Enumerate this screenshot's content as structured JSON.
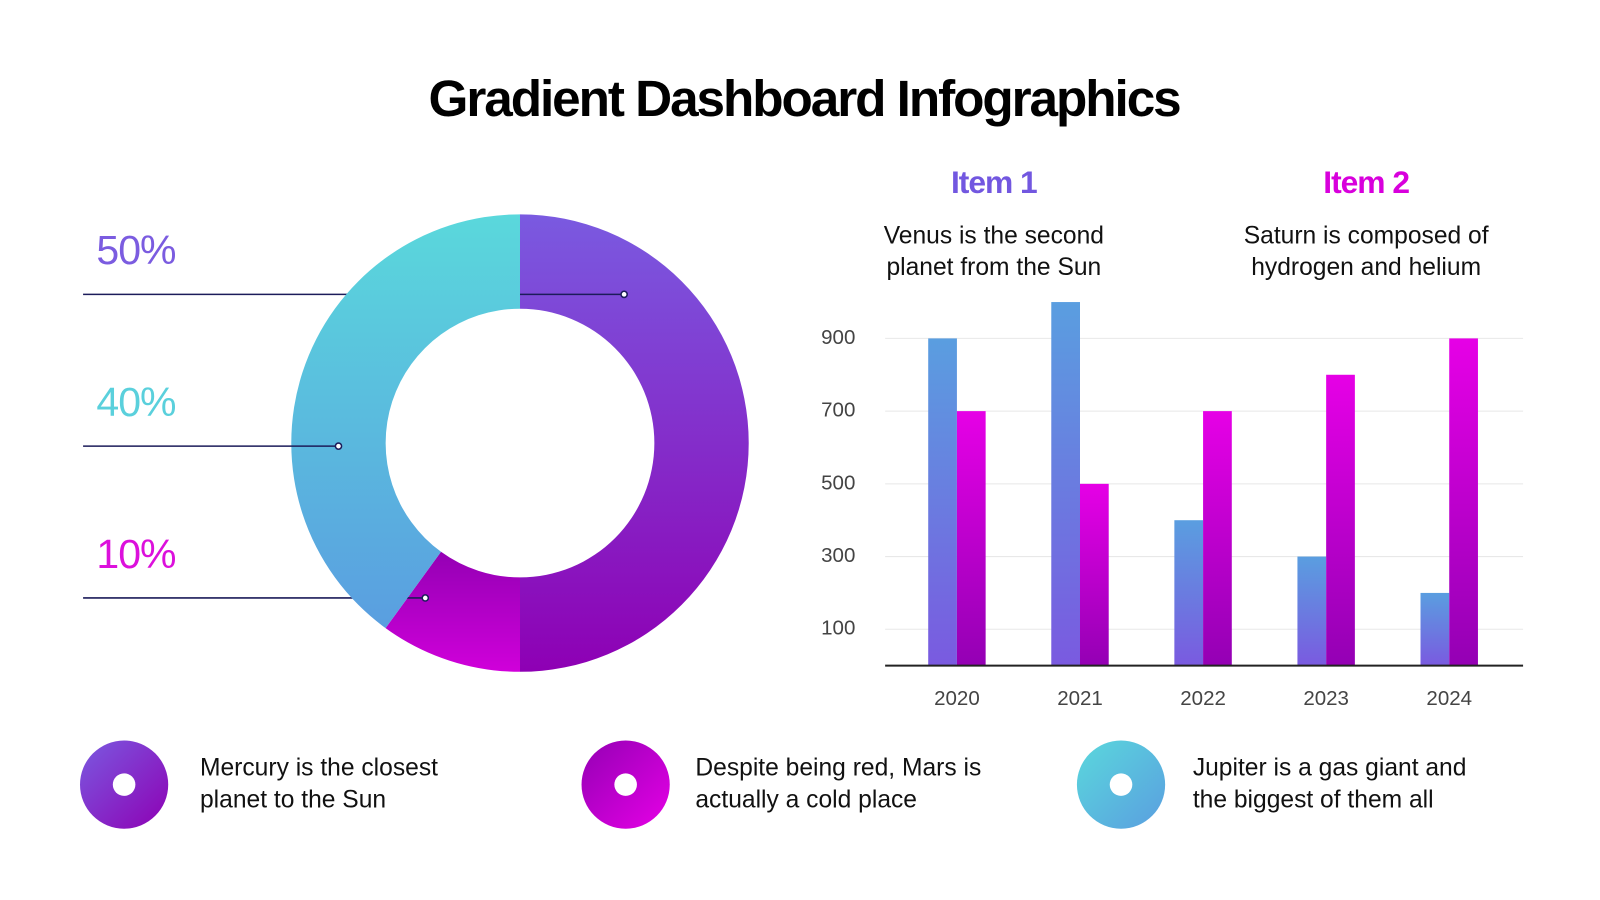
{
  "title": "Gradient Dashboard Infographics",
  "chart_data": [
    {
      "type": "pie",
      "donut": true,
      "values": [
        50,
        10,
        40
      ],
      "value_labels": [
        "50%",
        "10%",
        "40%"
      ],
      "label_colors": [
        "#7b5ce0",
        "#dc10dc",
        "#5ad0dc"
      ],
      "gradients": [
        [
          "#7a5ae0",
          "#8e00b4"
        ],
        [
          "#9400b4",
          "#d000da"
        ],
        [
          "#5ad8dc",
          "#5a9ee0"
        ]
      ]
    },
    {
      "type": "bar",
      "categories": [
        "2020",
        "2021",
        "2022",
        "2023",
        "2024"
      ],
      "series": [
        {
          "name": "Item 1",
          "description": [
            "Venus is the second",
            "planet from the Sun"
          ],
          "color": "#7257e0",
          "gradient": [
            "#5a9ee0",
            "#7a5ae0"
          ],
          "values": [
            900,
            1000,
            400,
            300,
            200
          ]
        },
        {
          "name": "Item 2",
          "description": [
            "Saturn is composed of",
            "hydrogen and helium"
          ],
          "color": "#d800dc",
          "gradient": [
            "#e600e6",
            "#9400b4"
          ],
          "values": [
            700,
            500,
            700,
            800,
            900
          ]
        }
      ],
      "ylim": [
        0,
        1000
      ],
      "yticks": [
        100,
        300,
        500,
        700,
        900
      ],
      "grid": true
    }
  ],
  "notes": [
    {
      "lines": [
        "Mercury is the closest",
        "planet to the Sun"
      ],
      "gradient": [
        "#7a5ae0",
        "#8e00b4"
      ]
    },
    {
      "lines": [
        "Despite being red, Mars is",
        "actually a cold place"
      ],
      "gradient": [
        "#9400b4",
        "#e600e6"
      ]
    },
    {
      "lines": [
        "Jupiter is a gas giant and",
        "the biggest of them all"
      ],
      "gradient": [
        "#5ad8dc",
        "#5a9ee0"
      ]
    }
  ]
}
